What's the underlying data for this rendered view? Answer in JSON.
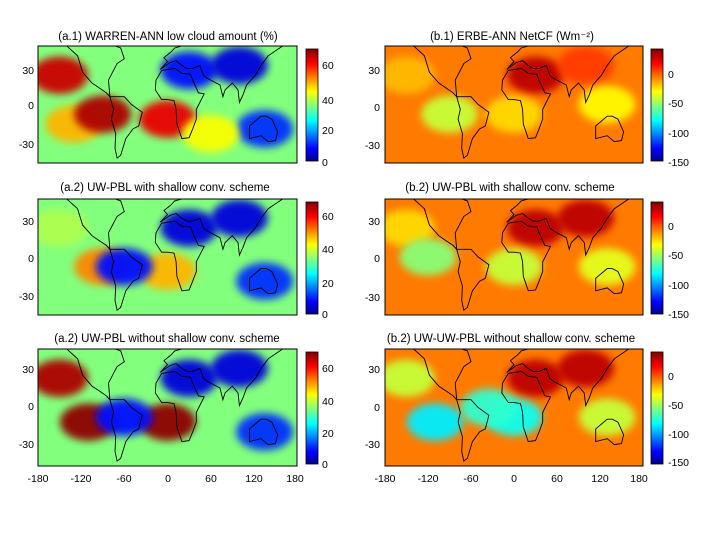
{
  "chart_data": [
    {
      "type": "heatmap",
      "title": "(a.1) WARREN-ANN low cloud amount (%)",
      "field": "low cloud amount",
      "units": "%",
      "xlim": [
        -180,
        180
      ],
      "ylim": [
        -60,
        60
      ],
      "yticks": [
        30,
        0,
        -30
      ],
      "xticks": [],
      "colorbar": {
        "min": 0,
        "max": 65,
        "ticks": [
          0,
          20,
          40,
          60
        ]
      },
      "regions": [
        {
          "lon": -150,
          "lat": 30,
          "value": 60
        },
        {
          "lon": -130,
          "lat": -20,
          "value": 45
        },
        {
          "lon": -90,
          "lat": -10,
          "value": 62
        },
        {
          "lon": 30,
          "lat": 35,
          "value": 8
        },
        {
          "lon": 100,
          "lat": 40,
          "value": 5
        },
        {
          "lon": 135,
          "lat": -25,
          "value": 10
        },
        {
          "lon": 0,
          "lat": -15,
          "value": 58
        },
        {
          "lon": 60,
          "lat": -30,
          "value": 40
        }
      ]
    },
    {
      "type": "heatmap",
      "title": "(b.1) ERBE-ANN NetCF (Wm⁻²)",
      "field": "net cloud forcing",
      "units": "W m-2",
      "xlim": [
        -180,
        180
      ],
      "ylim": [
        -60,
        60
      ],
      "yticks": [
        30,
        0,
        -30
      ],
      "xticks": [],
      "colorbar": {
        "min": -150,
        "max": 10,
        "ticks": [
          0,
          -50,
          -100,
          -150
        ]
      },
      "regions": [
        {
          "lon": -150,
          "lat": 30,
          "value": -40
        },
        {
          "lon": -90,
          "lat": -10,
          "value": -60
        },
        {
          "lon": 30,
          "lat": 30,
          "value": 0
        },
        {
          "lon": 100,
          "lat": 40,
          "value": -20
        },
        {
          "lon": 0,
          "lat": -10,
          "value": -45
        },
        {
          "lon": 130,
          "lat": 0,
          "value": -50
        }
      ]
    },
    {
      "type": "heatmap",
      "title": "(a.2) UW-PBL with shallow conv. scheme",
      "field": "low cloud amount",
      "units": "%",
      "xlim": [
        -180,
        180
      ],
      "ylim": [
        -60,
        60
      ],
      "yticks": [
        30,
        0,
        -30
      ],
      "xticks": [],
      "colorbar": {
        "min": 0,
        "max": 65,
        "ticks": [
          0,
          20,
          40,
          60
        ]
      },
      "regions": [
        {
          "lon": -150,
          "lat": 30,
          "value": 35
        },
        {
          "lon": -90,
          "lat": -10,
          "value": 48
        },
        {
          "lon": 30,
          "lat": 30,
          "value": 5
        },
        {
          "lon": 100,
          "lat": 40,
          "value": 5
        },
        {
          "lon": 0,
          "lat": -15,
          "value": 45
        },
        {
          "lon": -60,
          "lat": -10,
          "value": 8
        },
        {
          "lon": 135,
          "lat": -25,
          "value": 10
        }
      ]
    },
    {
      "type": "heatmap",
      "title": "(b.2) UW-PBL with shallow conv. scheme",
      "field": "net cloud forcing",
      "units": "W m-2",
      "xlim": [
        -180,
        180
      ],
      "ylim": [
        -60,
        60
      ],
      "yticks": [
        30,
        0,
        -30
      ],
      "xticks": [],
      "colorbar": {
        "min": -150,
        "max": 10,
        "ticks": [
          0,
          -50,
          -100,
          -150
        ]
      },
      "regions": [
        {
          "lon": -150,
          "lat": 30,
          "value": -45
        },
        {
          "lon": -120,
          "lat": 0,
          "value": -70
        },
        {
          "lon": 30,
          "lat": 30,
          "value": 0
        },
        {
          "lon": 100,
          "lat": 40,
          "value": 0
        },
        {
          "lon": 0,
          "lat": -10,
          "value": -60
        },
        {
          "lon": 130,
          "lat": -10,
          "value": -55
        }
      ]
    },
    {
      "type": "heatmap",
      "title": "(a.2) UW-PBL without shallow conv. scheme",
      "field": "low cloud amount",
      "units": "%",
      "xlim": [
        -180,
        180
      ],
      "ylim": [
        -60,
        60
      ],
      "yticks": [
        30,
        0,
        -30
      ],
      "xticks": [
        -180,
        -120,
        -60,
        0,
        60,
        120,
        180
      ],
      "colorbar": {
        "min": 0,
        "max": 65,
        "ticks": [
          0,
          20,
          40,
          60
        ]
      },
      "regions": [
        {
          "lon": -150,
          "lat": 30,
          "value": 62
        },
        {
          "lon": -110,
          "lat": -15,
          "value": 64
        },
        {
          "lon": 30,
          "lat": 30,
          "value": 5
        },
        {
          "lon": 100,
          "lat": 40,
          "value": 5
        },
        {
          "lon": 0,
          "lat": -15,
          "value": 64
        },
        {
          "lon": -60,
          "lat": -10,
          "value": 8
        },
        {
          "lon": 135,
          "lat": -25,
          "value": 10
        }
      ]
    },
    {
      "type": "heatmap",
      "title": "(b.2) UW-UW-PBL without shallow conv. scheme",
      "field": "net cloud forcing",
      "units": "W m-2",
      "xlim": [
        -180,
        180
      ],
      "ylim": [
        -60,
        60
      ],
      "yticks": [
        30,
        0,
        -30
      ],
      "xticks": [
        -180,
        -120,
        -60,
        0,
        60,
        120,
        180
      ],
      "colorbar": {
        "min": -150,
        "max": 10,
        "ticks": [
          0,
          -50,
          -100,
          -150
        ]
      },
      "regions": [
        {
          "lon": -150,
          "lat": 30,
          "value": -60
        },
        {
          "lon": -110,
          "lat": -15,
          "value": -95
        },
        {
          "lon": 30,
          "lat": 30,
          "value": 0
        },
        {
          "lon": 100,
          "lat": 40,
          "value": 0
        },
        {
          "lon": 0,
          "lat": -10,
          "value": -90
        },
        {
          "lon": -35,
          "lat": 0,
          "value": -85
        },
        {
          "lon": 130,
          "lat": -10,
          "value": -60
        }
      ]
    }
  ]
}
